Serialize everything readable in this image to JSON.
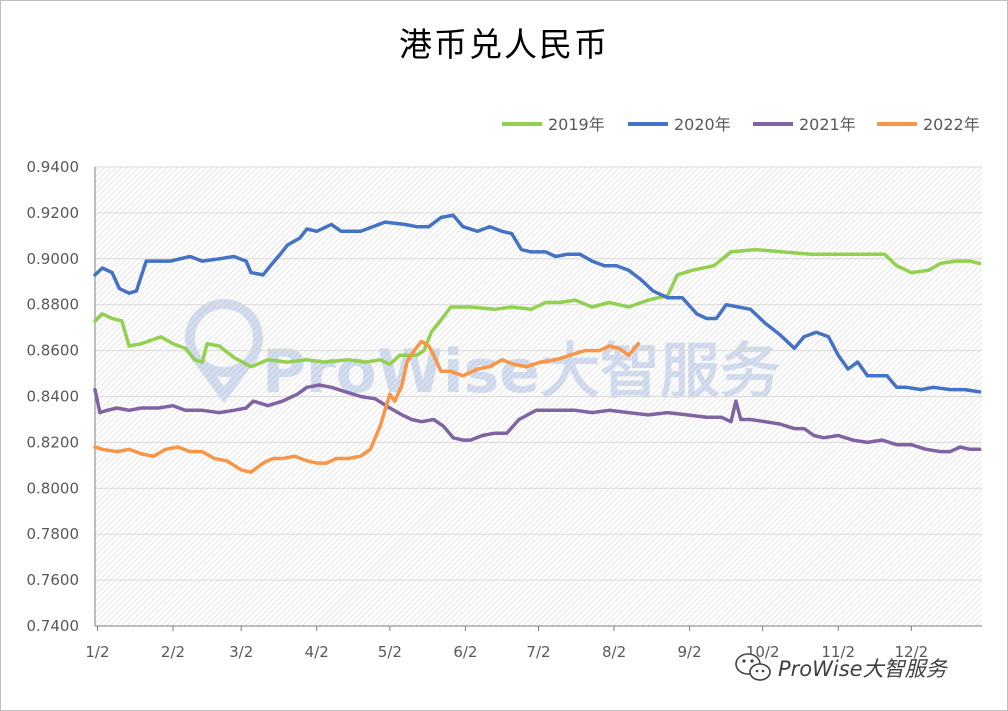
{
  "chart_data": {
    "type": "line",
    "title": "港币兑人民币",
    "xlabel": "",
    "ylabel": "",
    "ylim": [
      0.74,
      0.94
    ],
    "yticks": [
      "0.9400",
      "0.9200",
      "0.9000",
      "0.8800",
      "0.8600",
      "0.8400",
      "0.8200",
      "0.8000",
      "0.7800",
      "0.7600",
      "0.7400"
    ],
    "x_ticks": [
      "1/2",
      "2/2",
      "3/2",
      "4/2",
      "5/2",
      "6/2",
      "7/2",
      "8/2",
      "9/2",
      "10/2",
      "11/2",
      "12/2"
    ],
    "grid": true,
    "legend_position": "top-right",
    "series": [
      {
        "name": "2019年",
        "color": "#92d050",
        "points": [
          [
            1,
            0.873
          ],
          [
            4,
            0.876
          ],
          [
            8,
            0.874
          ],
          [
            12,
            0.873
          ],
          [
            15,
            0.862
          ],
          [
            20,
            0.863
          ],
          [
            28,
            0.866
          ],
          [
            33,
            0.863
          ],
          [
            38,
            0.861
          ],
          [
            42,
            0.856
          ],
          [
            45,
            0.855
          ],
          [
            47,
            0.863
          ],
          [
            52,
            0.862
          ],
          [
            58,
            0.857
          ],
          [
            65,
            0.853
          ],
          [
            72,
            0.856
          ],
          [
            80,
            0.855
          ],
          [
            88,
            0.856
          ],
          [
            95,
            0.855
          ],
          [
            105,
            0.856
          ],
          [
            112,
            0.855
          ],
          [
            118,
            0.856
          ],
          [
            122,
            0.854
          ],
          [
            126,
            0.858
          ],
          [
            133,
            0.858
          ],
          [
            136,
            0.86
          ],
          [
            139,
            0.868
          ],
          [
            142,
            0.872
          ],
          [
            147,
            0.879
          ],
          [
            155,
            0.879
          ],
          [
            165,
            0.878
          ],
          [
            172,
            0.879
          ],
          [
            180,
            0.878
          ],
          [
            186,
            0.881
          ],
          [
            192,
            0.881
          ],
          [
            198,
            0.882
          ],
          [
            205,
            0.879
          ],
          [
            212,
            0.881
          ],
          [
            220,
            0.879
          ],
          [
            228,
            0.882
          ],
          [
            236,
            0.884
          ],
          [
            240,
            0.893
          ],
          [
            246,
            0.895
          ],
          [
            255,
            0.897
          ],
          [
            262,
            0.903
          ],
          [
            272,
            0.904
          ],
          [
            283,
            0.903
          ],
          [
            295,
            0.902
          ],
          [
            305,
            0.902
          ],
          [
            318,
            0.902
          ],
          [
            325,
            0.902
          ],
          [
            330,
            0.897
          ],
          [
            336,
            0.894
          ],
          [
            343,
            0.895
          ],
          [
            348,
            0.898
          ],
          [
            354,
            0.899
          ],
          [
            360,
            0.899
          ],
          [
            364,
            0.898
          ]
        ]
      },
      {
        "name": "2020年",
        "color": "#4472c4",
        "points": [
          [
            1,
            0.893
          ],
          [
            4,
            0.896
          ],
          [
            8,
            0.894
          ],
          [
            11,
            0.887
          ],
          [
            15,
            0.885
          ],
          [
            18,
            0.886
          ],
          [
            22,
            0.899
          ],
          [
            32,
            0.899
          ],
          [
            40,
            0.901
          ],
          [
            45,
            0.899
          ],
          [
            52,
            0.9
          ],
          [
            58,
            0.901
          ],
          [
            63,
            0.899
          ],
          [
            65,
            0.894
          ],
          [
            70,
            0.893
          ],
          [
            73,
            0.897
          ],
          [
            77,
            0.902
          ],
          [
            80,
            0.906
          ],
          [
            85,
            0.909
          ],
          [
            88,
            0.913
          ],
          [
            92,
            0.912
          ],
          [
            98,
            0.915
          ],
          [
            102,
            0.912
          ],
          [
            106,
            0.912
          ],
          [
            110,
            0.912
          ],
          [
            115,
            0.914
          ],
          [
            120,
            0.916
          ],
          [
            128,
            0.915
          ],
          [
            133,
            0.914
          ],
          [
            138,
            0.914
          ],
          [
            143,
            0.918
          ],
          [
            148,
            0.919
          ],
          [
            152,
            0.914
          ],
          [
            158,
            0.912
          ],
          [
            163,
            0.914
          ],
          [
            168,
            0.912
          ],
          [
            172,
            0.911
          ],
          [
            176,
            0.904
          ],
          [
            180,
            0.903
          ],
          [
            186,
            0.903
          ],
          [
            190,
            0.901
          ],
          [
            195,
            0.902
          ],
          [
            200,
            0.902
          ],
          [
            205,
            0.899
          ],
          [
            210,
            0.897
          ],
          [
            215,
            0.897
          ],
          [
            220,
            0.895
          ],
          [
            225,
            0.891
          ],
          [
            230,
            0.886
          ],
          [
            236,
            0.883
          ],
          [
            242,
            0.883
          ],
          [
            248,
            0.876
          ],
          [
            252,
            0.874
          ],
          [
            256,
            0.874
          ],
          [
            260,
            0.88
          ],
          [
            265,
            0.879
          ],
          [
            270,
            0.878
          ],
          [
            276,
            0.872
          ],
          [
            282,
            0.867
          ],
          [
            288,
            0.861
          ],
          [
            292,
            0.866
          ],
          [
            297,
            0.868
          ],
          [
            302,
            0.866
          ],
          [
            306,
            0.858
          ],
          [
            310,
            0.852
          ],
          [
            314,
            0.855
          ],
          [
            318,
            0.849
          ],
          [
            322,
            0.849
          ],
          [
            326,
            0.849
          ],
          [
            330,
            0.844
          ],
          [
            334,
            0.844
          ],
          [
            340,
            0.843
          ],
          [
            345,
            0.844
          ],
          [
            352,
            0.843
          ],
          [
            358,
            0.843
          ],
          [
            364,
            0.842
          ]
        ]
      },
      {
        "name": "2021年",
        "color": "#8064a2",
        "points": [
          [
            1,
            0.843
          ],
          [
            3,
            0.833
          ],
          [
            6,
            0.834
          ],
          [
            10,
            0.835
          ],
          [
            15,
            0.834
          ],
          [
            20,
            0.835
          ],
          [
            27,
            0.835
          ],
          [
            33,
            0.836
          ],
          [
            38,
            0.834
          ],
          [
            45,
            0.834
          ],
          [
            52,
            0.833
          ],
          [
            58,
            0.834
          ],
          [
            63,
            0.835
          ],
          [
            66,
            0.838
          ],
          [
            72,
            0.836
          ],
          [
            78,
            0.838
          ],
          [
            84,
            0.841
          ],
          [
            88,
            0.844
          ],
          [
            93,
            0.845
          ],
          [
            98,
            0.844
          ],
          [
            104,
            0.842
          ],
          [
            110,
            0.84
          ],
          [
            116,
            0.839
          ],
          [
            122,
            0.835
          ],
          [
            127,
            0.832
          ],
          [
            131,
            0.83
          ],
          [
            135,
            0.829
          ],
          [
            140,
            0.83
          ],
          [
            144,
            0.827
          ],
          [
            148,
            0.822
          ],
          [
            152,
            0.821
          ],
          [
            155,
            0.821
          ],
          [
            160,
            0.823
          ],
          [
            165,
            0.824
          ],
          [
            170,
            0.824
          ],
          [
            175,
            0.83
          ],
          [
            182,
            0.834
          ],
          [
            190,
            0.834
          ],
          [
            198,
            0.834
          ],
          [
            205,
            0.833
          ],
          [
            212,
            0.834
          ],
          [
            220,
            0.833
          ],
          [
            228,
            0.832
          ],
          [
            236,
            0.833
          ],
          [
            244,
            0.832
          ],
          [
            252,
            0.831
          ],
          [
            258,
            0.831
          ],
          [
            262,
            0.829
          ],
          [
            264,
            0.838
          ],
          [
            266,
            0.83
          ],
          [
            270,
            0.83
          ],
          [
            276,
            0.829
          ],
          [
            282,
            0.828
          ],
          [
            288,
            0.826
          ],
          [
            292,
            0.826
          ],
          [
            296,
            0.823
          ],
          [
            300,
            0.822
          ],
          [
            306,
            0.823
          ],
          [
            312,
            0.821
          ],
          [
            318,
            0.82
          ],
          [
            324,
            0.821
          ],
          [
            330,
            0.819
          ],
          [
            336,
            0.819
          ],
          [
            342,
            0.817
          ],
          [
            348,
            0.816
          ],
          [
            352,
            0.816
          ],
          [
            356,
            0.818
          ],
          [
            360,
            0.817
          ],
          [
            364,
            0.817
          ]
        ]
      },
      {
        "name": "2022年",
        "color": "#f79646",
        "points": [
          [
            1,
            0.818
          ],
          [
            4,
            0.817
          ],
          [
            10,
            0.816
          ],
          [
            15,
            0.817
          ],
          [
            20,
            0.815
          ],
          [
            25,
            0.814
          ],
          [
            30,
            0.817
          ],
          [
            35,
            0.818
          ],
          [
            40,
            0.816
          ],
          [
            45,
            0.816
          ],
          [
            50,
            0.813
          ],
          [
            55,
            0.812
          ],
          [
            58,
            0.81
          ],
          [
            61,
            0.808
          ],
          [
            65,
            0.807
          ],
          [
            70,
            0.811
          ],
          [
            74,
            0.813
          ],
          [
            78,
            0.813
          ],
          [
            83,
            0.814
          ],
          [
            88,
            0.812
          ],
          [
            92,
            0.811
          ],
          [
            96,
            0.811
          ],
          [
            100,
            0.813
          ],
          [
            105,
            0.813
          ],
          [
            110,
            0.814
          ],
          [
            114,
            0.817
          ],
          [
            116,
            0.822
          ],
          [
            118,
            0.827
          ],
          [
            120,
            0.834
          ],
          [
            122,
            0.841
          ],
          [
            124,
            0.838
          ],
          [
            127,
            0.845
          ],
          [
            129,
            0.855
          ],
          [
            132,
            0.86
          ],
          [
            135,
            0.864
          ],
          [
            138,
            0.862
          ],
          [
            140,
            0.858
          ],
          [
            143,
            0.851
          ],
          [
            147,
            0.851
          ],
          [
            152,
            0.849
          ],
          [
            158,
            0.852
          ],
          [
            163,
            0.853
          ],
          [
            168,
            0.856
          ],
          [
            173,
            0.854
          ],
          [
            178,
            0.853
          ],
          [
            184,
            0.855
          ],
          [
            190,
            0.856
          ],
          [
            196,
            0.858
          ],
          [
            202,
            0.86
          ],
          [
            208,
            0.86
          ],
          [
            212,
            0.862
          ],
          [
            216,
            0.861
          ],
          [
            220,
            0.858
          ],
          [
            224,
            0.863
          ]
        ]
      }
    ]
  },
  "watermark": {
    "brand": "ProWise大智服务",
    "footer": "ProWise大智服务",
    "wechat_icon": "wechat-icon",
    "logo_icon": "location-pin-icon"
  }
}
